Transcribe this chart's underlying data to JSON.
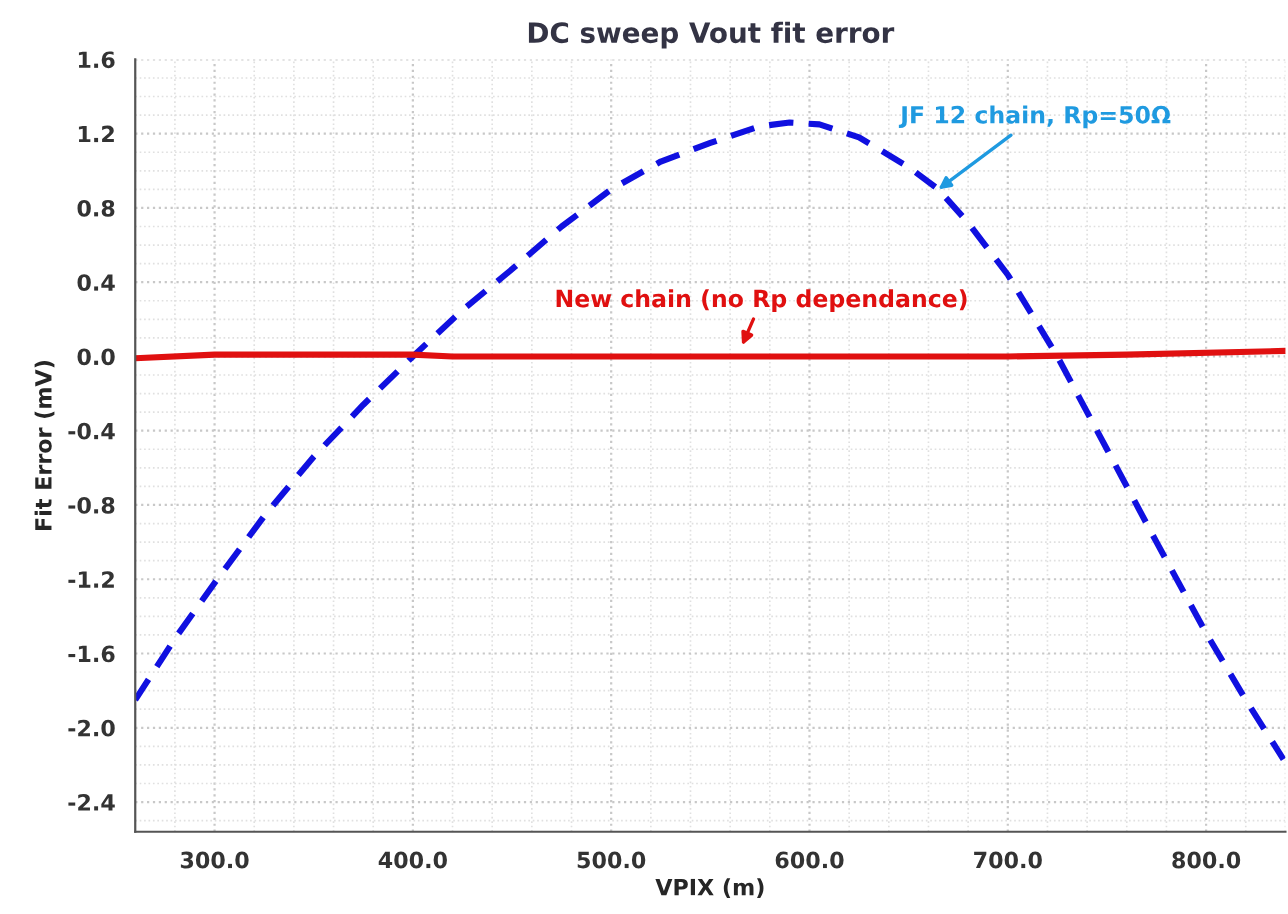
{
  "chart_data": {
    "type": "line",
    "title": "DC sweep Vout fit error",
    "xlabel": "VPIX (m)",
    "ylabel": "Fit Error (mV)",
    "xlim": [
      260,
      840
    ],
    "ylim": [
      -2.56,
      1.6
    ],
    "xticks": [
      {
        "value": 300,
        "label": "300.0"
      },
      {
        "value": 400,
        "label": "400.0"
      },
      {
        "value": 500,
        "label": "500.0"
      },
      {
        "value": 600,
        "label": "600.0"
      },
      {
        "value": 700,
        "label": "700.0"
      },
      {
        "value": 800,
        "label": "800.0"
      }
    ],
    "yticks": [
      -2.4,
      {
        "value": -2,
        "label": "-2.0"
      },
      -1.6,
      -1.2,
      -0.8,
      -0.4,
      {
        "value": 0,
        "label": "0.0"
      },
      0.4,
      0.8,
      1.2,
      1.6
    ],
    "grid": true,
    "legend": false,
    "line_style": "solid",
    "marker": "none",
    "series": [
      {
        "color": "#1010e0",
        "line_style": "dashed",
        "x": [
          260,
          280,
          300,
          325,
          350,
          375,
          400,
          425,
          450,
          475,
          500,
          525,
          550,
          575,
          590,
          605,
          625,
          650,
          665,
          680,
          700,
          725,
          750,
          775,
          800,
          820,
          839
        ],
        "values": [
          -1.85,
          -1.52,
          -1.22,
          -0.86,
          -0.54,
          -0.26,
          0.0,
          0.25,
          0.47,
          0.7,
          0.9,
          1.05,
          1.15,
          1.24,
          1.26,
          1.25,
          1.18,
          1.02,
          0.9,
          0.72,
          0.44,
          0.0,
          -0.5,
          -1.0,
          -1.49,
          -1.85,
          -2.17
        ]
      },
      {
        "color": "#e01010",
        "x": [
          260,
          300,
          400,
          420,
          700,
          760,
          840
        ],
        "values": [
          -0.01,
          0.01,
          0.01,
          0.0,
          0.0,
          0.01,
          0.03
        ]
      }
    ],
    "annotations": [
      {
        "text": "JF 12 chain, Rp=50Ω",
        "x": 665,
        "y": 0.9
      },
      {
        "text": "New chain (no Rp dependance)",
        "x": 566,
        "y": 0.06
      }
    ]
  }
}
